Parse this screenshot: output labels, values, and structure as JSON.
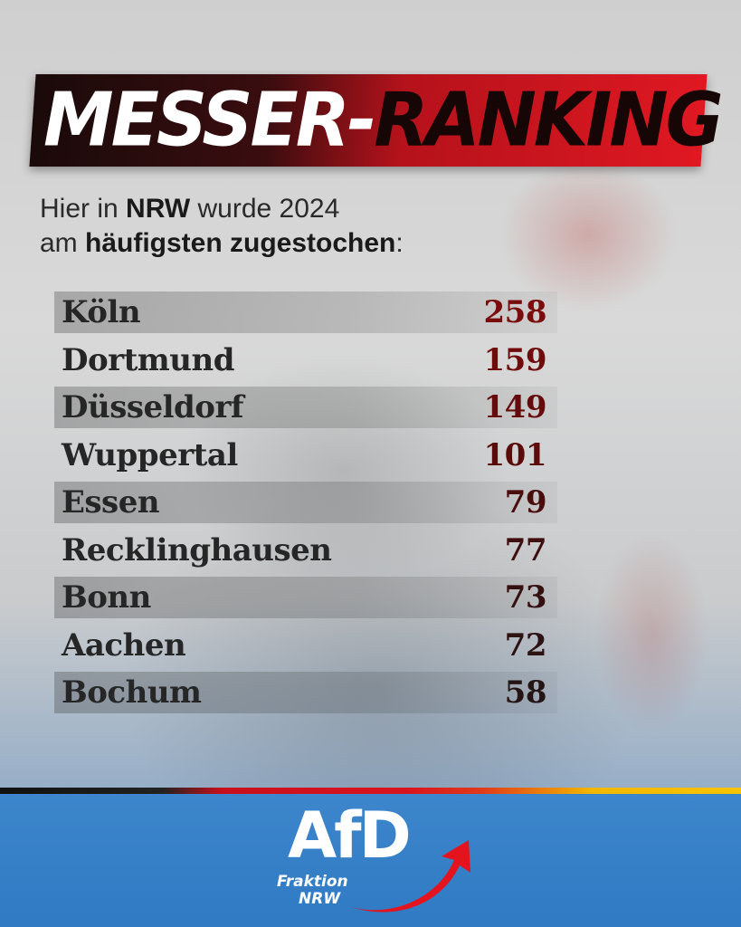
{
  "title": {
    "part1": "MESSER-",
    "part2": "RANKING"
  },
  "intro": {
    "line1_prefix": "Hier in ",
    "line1_bold": "NRW",
    "line1_suffix": " wurde 2024",
    "line2_prefix": "am ",
    "line2_bold": "häufigsten zugestochen",
    "line2_suffix": ":"
  },
  "ranking": [
    {
      "city": "Köln",
      "count": "258"
    },
    {
      "city": "Dortmund",
      "count": "159"
    },
    {
      "city": "Düsseldorf",
      "count": "149"
    },
    {
      "city": "Wuppertal",
      "count": "101"
    },
    {
      "city": "Essen",
      "count": "79"
    },
    {
      "city": "Recklinghausen",
      "count": "77"
    },
    {
      "city": "Bonn",
      "count": "73"
    },
    {
      "city": "Aachen",
      "count": "72"
    },
    {
      "city": "Bochum",
      "count": "58"
    }
  ],
  "logo": {
    "main": "AfD",
    "sub1": "Fraktion",
    "sub2": "NRW"
  },
  "colors": {
    "accent_red": "#d9141f",
    "count_colors": [
      "#7a0c0c",
      "#700b0b",
      "#660b0b",
      "#5c0b0b",
      "#4a0d0d",
      "#3f0e0e",
      "#351010",
      "#2c1212",
      "#241414"
    ],
    "footer_blue": "#3d86cc"
  }
}
